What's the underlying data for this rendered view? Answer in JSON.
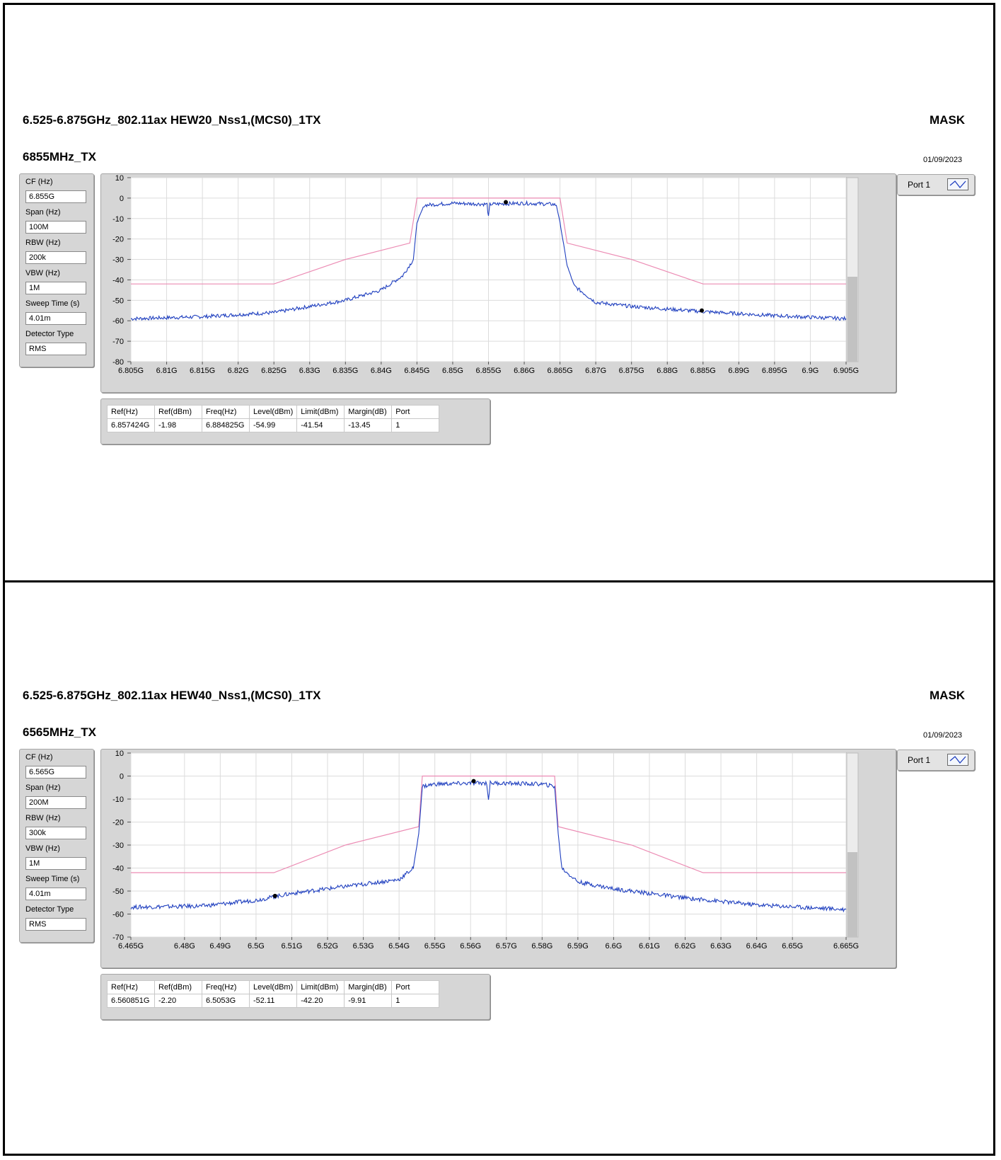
{
  "panels": [
    {
      "title": "6.525-6.875GHz_802.11ax HEW20_Nss1,(MCS0)_1TX",
      "mask_label": "MASK",
      "subtitle": "6855MHz_TX",
      "date": "01/09/2023",
      "params": [
        {
          "label": "CF (Hz)",
          "value": "6.855G"
        },
        {
          "label": "Span (Hz)",
          "value": "100M"
        },
        {
          "label": "RBW (Hz)",
          "value": "200k"
        },
        {
          "label": "VBW (Hz)",
          "value": "1M"
        },
        {
          "label": "Sweep Time (s)",
          "value": "4.01m"
        },
        {
          "label": "Detector Type",
          "value": "RMS"
        }
      ],
      "port_label": "Port 1",
      "table": {
        "headers": [
          "Ref(Hz)",
          "Ref(dBm)",
          "Freq(Hz)",
          "Level(dBm)",
          "Limit(dBm)",
          "Margin(dB)",
          "Port"
        ],
        "row": [
          "6.857424G",
          "-1.98",
          "6.884825G",
          "-54.99",
          "-41.54",
          "-13.45",
          "1"
        ]
      }
    },
    {
      "title": "6.525-6.875GHz_802.11ax HEW40_Nss1,(MCS0)_1TX",
      "mask_label": "MASK",
      "subtitle": "6565MHz_TX",
      "date": "01/09/2023",
      "params": [
        {
          "label": "CF (Hz)",
          "value": "6.565G"
        },
        {
          "label": "Span (Hz)",
          "value": "200M"
        },
        {
          "label": "RBW (Hz)",
          "value": "300k"
        },
        {
          "label": "VBW (Hz)",
          "value": "1M"
        },
        {
          "label": "Sweep Time (s)",
          "value": "4.01m"
        },
        {
          "label": "Detector Type",
          "value": "RMS"
        }
      ],
      "port_label": "Port 1",
      "table": {
        "headers": [
          "Ref(Hz)",
          "Ref(dBm)",
          "Freq(Hz)",
          "Level(dBm)",
          "Limit(dBm)",
          "Margin(dB)",
          "Port"
        ],
        "row": [
          "6.560851G",
          "-2.20",
          "6.5053G",
          "-52.11",
          "-42.20",
          "-9.91",
          "1"
        ]
      }
    }
  ],
  "chart_data": [
    {
      "type": "line",
      "xlim": [
        6.805,
        6.905
      ],
      "ylim": [
        -80,
        10
      ],
      "y_ticks": [
        10,
        0,
        -10,
        -20,
        -30,
        -40,
        -50,
        -60,
        -70,
        -80
      ],
      "x_ticks": [
        6.805,
        6.81,
        6.815,
        6.82,
        6.825,
        6.83,
        6.835,
        6.84,
        6.845,
        6.85,
        6.855,
        6.86,
        6.865,
        6.87,
        6.875,
        6.88,
        6.885,
        6.89,
        6.895,
        6.9,
        6.905
      ],
      "x_tick_labels": [
        "6.805G",
        "6.81G",
        "6.815G",
        "6.82G",
        "6.825G",
        "6.83G",
        "6.835G",
        "6.84G",
        "6.845G",
        "6.85G",
        "6.855G",
        "6.86G",
        "6.865G",
        "6.87G",
        "6.875G",
        "6.88G",
        "6.885G",
        "6.89G",
        "6.895G",
        "6.9G",
        "6.905G"
      ],
      "grid": true,
      "series": [
        {
          "color": "#1f3fbf",
          "x": [
            6.805,
            6.815,
            6.825,
            6.835,
            6.84,
            6.843,
            6.8445,
            6.845,
            6.846,
            6.85,
            6.8548,
            6.855,
            6.8552,
            6.86,
            6.864,
            6.8645,
            6.865,
            6.866,
            6.867,
            6.87,
            6.875,
            6.885,
            6.895,
            6.905
          ],
          "y": [
            -59,
            -58,
            -56,
            -50,
            -45,
            -38,
            -30,
            -12,
            -3.5,
            -2.5,
            -3.0,
            -9.5,
            -3.0,
            -2.5,
            -3.0,
            -3.5,
            -12,
            -33,
            -43,
            -51,
            -53,
            -55.5,
            -57.5,
            -59
          ]
        },
        {
          "color": "#ec8cb4",
          "x": [
            6.805,
            6.825,
            6.835,
            6.844,
            6.845,
            6.865,
            6.866,
            6.875,
            6.885,
            6.905
          ],
          "y": [
            -42,
            -42,
            -30,
            -22,
            0,
            0,
            -22,
            -30,
            -42,
            -42
          ]
        }
      ],
      "markers": [
        {
          "x": 6.857424,
          "y": -1.98
        },
        {
          "x": 6.884825,
          "y": -54.99
        }
      ]
    },
    {
      "type": "line",
      "xlim": [
        6.465,
        6.665
      ],
      "ylim": [
        -70,
        10
      ],
      "y_ticks": [
        10,
        0,
        -10,
        -20,
        -30,
        -40,
        -50,
        -60,
        -70
      ],
      "x_ticks": [
        6.465,
        6.48,
        6.49,
        6.5,
        6.51,
        6.52,
        6.53,
        6.54,
        6.55,
        6.56,
        6.57,
        6.58,
        6.59,
        6.6,
        6.61,
        6.62,
        6.63,
        6.64,
        6.65,
        6.665
      ],
      "x_tick_labels": [
        "6.465G",
        "6.48G",
        "6.49G",
        "6.5G",
        "6.51G",
        "6.52G",
        "6.53G",
        "6.54G",
        "6.55G",
        "6.56G",
        "6.57G",
        "6.58G",
        "6.59G",
        "6.6G",
        "6.61G",
        "6.62G",
        "6.63G",
        "6.64G",
        "6.65G",
        "6.665G"
      ],
      "grid": true,
      "series": [
        {
          "color": "#1f3fbf",
          "x": [
            6.465,
            6.485,
            6.5,
            6.51,
            6.525,
            6.54,
            6.544,
            6.5455,
            6.5465,
            6.55,
            6.5645,
            6.565,
            6.5655,
            6.58,
            6.5835,
            6.5845,
            6.5855,
            6.59,
            6.6,
            6.62,
            6.64,
            6.665
          ],
          "y": [
            -57,
            -56.5,
            -54,
            -51,
            -48,
            -45,
            -40,
            -25,
            -4.5,
            -3.5,
            -3.0,
            -10,
            -3.0,
            -3.5,
            -4.5,
            -25,
            -40,
            -46,
            -49,
            -53,
            -56,
            -58
          ]
        },
        {
          "color": "#ec8cb4",
          "x": [
            6.465,
            6.505,
            6.525,
            6.5455,
            6.5465,
            6.5835,
            6.5845,
            6.605,
            6.625,
            6.665
          ],
          "y": [
            -42,
            -42,
            -30,
            -22,
            0,
            0,
            -22,
            -30,
            -42,
            -42
          ]
        }
      ],
      "markers": [
        {
          "x": 6.560851,
          "y": -2.2
        },
        {
          "x": 6.5053,
          "y": -52.11
        }
      ]
    }
  ]
}
